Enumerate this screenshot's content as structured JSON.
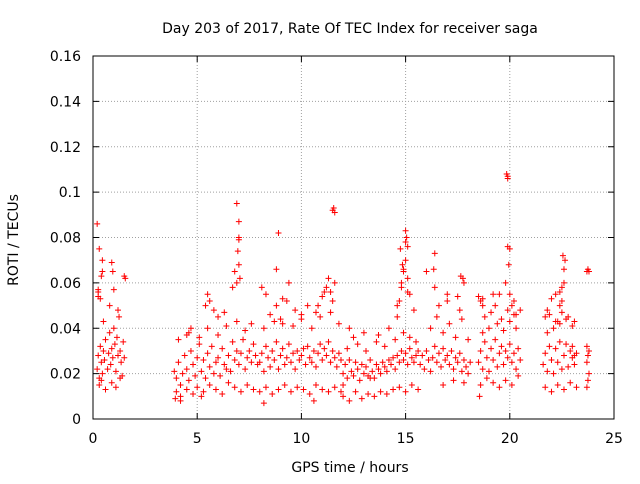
{
  "colors": {
    "marker": "#ff0000",
    "grid": "#a0a0a0",
    "axis": "#000000",
    "background": "#ffffff"
  },
  "chart_data": {
    "type": "scatter",
    "title": "Day 203 of 2017, Rate Of TEC Index for receiver saga",
    "xlabel": "GPS time / hours",
    "ylabel": "ROTI / TECUs",
    "xlim": [
      0,
      25
    ],
    "ylim": [
      0,
      0.16
    ],
    "xticks": [
      0,
      5,
      10,
      15,
      20,
      25
    ],
    "yticks": [
      0,
      0.02,
      0.04,
      0.06,
      0.08,
      0.1,
      0.12,
      0.14,
      0.16
    ],
    "xtick_labels": [
      "0",
      "5",
      "10",
      "15",
      "20",
      "25"
    ],
    "ytick_labels": [
      "0",
      "0.02",
      "0.04",
      "0.06",
      "0.08",
      "0.1",
      "0.12",
      "0.14",
      "0.16"
    ],
    "grid": true,
    "marker": "plus",
    "series": [
      {
        "name": "ROTI",
        "x": [
          0.2,
          0.25,
          0.3,
          0.35,
          0.4,
          0.45,
          0.5,
          0.55,
          0.6,
          0.7,
          0.75,
          0.8,
          0.85,
          0.9,
          0.95,
          1.0,
          1.05,
          1.1,
          1.15,
          1.2,
          1.25,
          1.3,
          1.35,
          1.4,
          1.45,
          1.5,
          0.3,
          0.4,
          0.6,
          0.9,
          1.1,
          1.3,
          0.5,
          0.8,
          1.2,
          0.25,
          0.35,
          1.0,
          0.45,
          0.45,
          0.4,
          0.25,
          0.25,
          0.3,
          0.2,
          0.9,
          0.95,
          1.5,
          1.55,
          3.9,
          4.0,
          4.1,
          4.2,
          4.3,
          4.4,
          4.5,
          4.6,
          4.7,
          4.8,
          4.9,
          5.0,
          5.1,
          5.2,
          5.3,
          5.4,
          5.5,
          5.6,
          5.7,
          5.8,
          5.9,
          6.0,
          6.1,
          6.2,
          6.3,
          6.4,
          6.5,
          6.6,
          6.7,
          6.8,
          6.9,
          7.0,
          7.1,
          7.2,
          7.3,
          7.4,
          7.5,
          7.6,
          7.7,
          7.8,
          7.9,
          4.0,
          4.2,
          4.5,
          4.8,
          5.0,
          5.3,
          5.6,
          5.9,
          6.2,
          6.5,
          6.8,
          7.1,
          7.4,
          7.7,
          4.1,
          4.6,
          5.1,
          5.5,
          6.0,
          6.4,
          6.9,
          7.3,
          7.6,
          5.4,
          5.5,
          5.6,
          5.8,
          6.0,
          6.3,
          4.5,
          4.7,
          6.7,
          6.8,
          6.9,
          7.0,
          7.0,
          7.0,
          6.9,
          6.95,
          7.0,
          7.05,
          4.2,
          5.2,
          3.95,
          8.0,
          8.1,
          8.2,
          8.3,
          8.4,
          8.5,
          8.6,
          8.7,
          8.8,
          8.9,
          9.0,
          9.1,
          9.2,
          9.3,
          9.4,
          9.5,
          9.6,
          9.7,
          9.8,
          9.9,
          10.0,
          10.1,
          10.2,
          10.3,
          10.4,
          10.5,
          10.6,
          10.7,
          10.8,
          10.9,
          11.0,
          11.1,
          11.2,
          11.3,
          11.4,
          11.5,
          11.6,
          11.7,
          11.8,
          11.9,
          8.0,
          8.3,
          8.6,
          8.9,
          9.2,
          9.5,
          9.8,
          10.1,
          10.4,
          10.7,
          11.0,
          11.3,
          11.6,
          11.9,
          8.2,
          8.7,
          9.1,
          9.6,
          10.0,
          10.5,
          10.9,
          11.4,
          11.8,
          8.5,
          8.8,
          9.0,
          9.3,
          9.7,
          10.0,
          10.3,
          10.7,
          11.0,
          11.2,
          11.3,
          11.4,
          11.5,
          11.6,
          8.3,
          8.1,
          9.1,
          9.4,
          10.8,
          11.1,
          8.9,
          8.8,
          11.5,
          11.55,
          11.6,
          8.2,
          10.6,
          12.0,
          12.1,
          12.2,
          12.3,
          12.4,
          12.5,
          12.6,
          12.7,
          12.8,
          12.9,
          13.0,
          13.1,
          13.2,
          13.3,
          13.4,
          13.5,
          13.6,
          13.7,
          13.8,
          13.9,
          14.0,
          14.1,
          14.2,
          14.3,
          14.4,
          14.5,
          14.6,
          14.7,
          14.8,
          14.9,
          15.0,
          15.1,
          15.2,
          15.3,
          15.4,
          15.5,
          15.6,
          12.0,
          12.3,
          12.6,
          12.9,
          13.2,
          13.5,
          13.8,
          14.1,
          14.4,
          14.7,
          15.0,
          15.3,
          15.6,
          12.2,
          12.7,
          13.1,
          13.6,
          14.0,
          14.5,
          14.9,
          15.2,
          15.5,
          12.3,
          12.5,
          13.0,
          13.7,
          14.2,
          14.6,
          14.7,
          14.8,
          14.9,
          15.0,
          15.1,
          15.2,
          15.4,
          14.75,
          14.85,
          15.0,
          15.05,
          15.1,
          15.0,
          14.8,
          14.9,
          15.1,
          14.6,
          12.0,
          13.3,
          15.7,
          15.8,
          15.9,
          16.0,
          16.1,
          16.2,
          16.3,
          16.4,
          16.5,
          16.6,
          16.7,
          16.8,
          16.9,
          17.0,
          17.1,
          17.2,
          17.3,
          17.4,
          17.5,
          17.6,
          17.7,
          17.8,
          17.9,
          18.0,
          18.1,
          16.2,
          16.5,
          16.8,
          17.1,
          17.4,
          17.7,
          18.0,
          16.6,
          17.0,
          17.6,
          16.8,
          17.3,
          17.8,
          16.4,
          17.0,
          17.5,
          17.8,
          16.35,
          16.4,
          17.65,
          17.75,
          16.0,
          18.5,
          18.6,
          18.7,
          18.8,
          18.9,
          19.0,
          19.1,
          19.2,
          19.3,
          19.4,
          19.5,
          19.6,
          19.7,
          19.8,
          19.9,
          20.0,
          20.1,
          20.2,
          20.3,
          20.4,
          20.5,
          18.6,
          18.9,
          19.2,
          19.5,
          19.8,
          20.1,
          20.4,
          18.7,
          19.0,
          19.4,
          19.7,
          20.0,
          20.3,
          18.8,
          19.1,
          19.6,
          19.9,
          20.2,
          18.6,
          18.7,
          19.2,
          19.3,
          19.5,
          19.8,
          20.0,
          20.1,
          20.2,
          20.3,
          19.9,
          20.0,
          19.9,
          19.85,
          19.9,
          19.95,
          18.5,
          18.7,
          20.5,
          18.55,
          21.6,
          21.7,
          21.8,
          21.9,
          22.0,
          22.1,
          22.2,
          22.3,
          22.4,
          22.5,
          22.6,
          22.7,
          22.8,
          22.9,
          23.0,
          23.1,
          23.2,
          21.7,
          22.0,
          22.3,
          22.6,
          22.9,
          23.2,
          21.8,
          22.1,
          22.4,
          22.7,
          23.0,
          21.9,
          22.2,
          22.5,
          22.8,
          23.1,
          21.8,
          22.0,
          22.2,
          22.4,
          22.5,
          22.6,
          22.6,
          22.55,
          22.65,
          22.4,
          22.5,
          21.7,
          22.3,
          23.0,
          23.1,
          23.7,
          23.75,
          23.8,
          23.7,
          23.75,
          23.8,
          23.7,
          23.8,
          23.75,
          23.7
        ],
        "y": [
          0.022,
          0.028,
          0.018,
          0.032,
          0.025,
          0.02,
          0.03,
          0.026,
          0.035,
          0.022,
          0.029,
          0.038,
          0.024,
          0.031,
          0.027,
          0.04,
          0.033,
          0.021,
          0.036,
          0.028,
          0.045,
          0.03,
          0.025,
          0.019,
          0.034,
          0.027,
          0.015,
          0.017,
          0.013,
          0.016,
          0.014,
          0.018,
          0.043,
          0.05,
          0.048,
          0.056,
          0.053,
          0.057,
          0.065,
          0.07,
          0.063,
          0.057,
          0.054,
          0.075,
          0.086,
          0.069,
          0.065,
          0.063,
          0.062,
          0.021,
          0.018,
          0.025,
          0.015,
          0.02,
          0.028,
          0.022,
          0.017,
          0.03,
          0.024,
          0.019,
          0.027,
          0.033,
          0.021,
          0.026,
          0.018,
          0.029,
          0.023,
          0.032,
          0.02,
          0.025,
          0.027,
          0.019,
          0.031,
          0.024,
          0.022,
          0.028,
          0.021,
          0.034,
          0.026,
          0.03,
          0.024,
          0.029,
          0.035,
          0.022,
          0.027,
          0.03,
          0.025,
          0.033,
          0.028,
          0.024,
          0.012,
          0.01,
          0.013,
          0.011,
          0.014,
          0.012,
          0.015,
          0.013,
          0.011,
          0.016,
          0.014,
          0.012,
          0.015,
          0.013,
          0.035,
          0.038,
          0.036,
          0.04,
          0.037,
          0.041,
          0.043,
          0.039,
          0.042,
          0.05,
          0.055,
          0.052,
          0.048,
          0.045,
          0.047,
          0.037,
          0.04,
          0.058,
          0.065,
          0.06,
          0.08,
          0.079,
          0.087,
          0.095,
          0.074,
          0.068,
          0.062,
          0.008,
          0.01,
          0.009,
          0.025,
          0.029,
          0.021,
          0.032,
          0.027,
          0.023,
          0.03,
          0.026,
          0.034,
          0.022,
          0.028,
          0.031,
          0.024,
          0.027,
          0.033,
          0.025,
          0.029,
          0.022,
          0.03,
          0.026,
          0.028,
          0.031,
          0.024,
          0.032,
          0.027,
          0.025,
          0.03,
          0.023,
          0.029,
          0.033,
          0.026,
          0.031,
          0.028,
          0.034,
          0.025,
          0.03,
          0.027,
          0.023,
          0.029,
          0.026,
          0.012,
          0.014,
          0.011,
          0.013,
          0.015,
          0.012,
          0.014,
          0.013,
          0.011,
          0.015,
          0.013,
          0.012,
          0.014,
          0.012,
          0.04,
          0.043,
          0.042,
          0.041,
          0.044,
          0.04,
          0.045,
          0.047,
          0.042,
          0.046,
          0.05,
          0.044,
          0.052,
          0.048,
          0.046,
          0.05,
          0.047,
          0.054,
          0.058,
          0.062,
          0.056,
          0.052,
          0.06,
          0.055,
          0.058,
          0.053,
          0.06,
          0.05,
          0.056,
          0.082,
          0.066,
          0.092,
          0.093,
          0.091,
          0.007,
          0.008,
          0.02,
          0.024,
          0.018,
          0.026,
          0.021,
          0.019,
          0.025,
          0.022,
          0.017,
          0.024,
          0.02,
          0.023,
          0.019,
          0.026,
          0.021,
          0.018,
          0.024,
          0.022,
          0.02,
          0.025,
          0.023,
          0.021,
          0.026,
          0.024,
          0.027,
          0.022,
          0.028,
          0.025,
          0.03,
          0.026,
          0.029,
          0.024,
          0.031,
          0.027,
          0.025,
          0.028,
          0.03,
          0.01,
          0.008,
          0.012,
          0.009,
          0.011,
          0.01,
          0.012,
          0.011,
          0.013,
          0.014,
          0.012,
          0.015,
          0.013,
          0.031,
          0.033,
          0.03,
          0.034,
          0.032,
          0.035,
          0.038,
          0.036,
          0.034,
          0.04,
          0.036,
          0.038,
          0.037,
          0.04,
          0.045,
          0.052,
          0.058,
          0.065,
          0.07,
          0.062,
          0.055,
          0.048,
          0.075,
          0.068,
          0.083,
          0.08,
          0.076,
          0.078,
          0.06,
          0.066,
          0.056,
          0.05,
          0.015,
          0.018,
          0.024,
          0.028,
          0.022,
          0.03,
          0.026,
          0.021,
          0.027,
          0.032,
          0.025,
          0.029,
          0.023,
          0.031,
          0.026,
          0.028,
          0.024,
          0.03,
          0.022,
          0.027,
          0.025,
          0.029,
          0.021,
          0.026,
          0.023,
          0.02,
          0.025,
          0.04,
          0.045,
          0.038,
          0.042,
          0.036,
          0.044,
          0.035,
          0.05,
          0.052,
          0.048,
          0.015,
          0.017,
          0.016,
          0.058,
          0.055,
          0.054,
          0.06,
          0.066,
          0.073,
          0.063,
          0.062,
          0.065,
          0.025,
          0.03,
          0.022,
          0.034,
          0.027,
          0.021,
          0.031,
          0.026,
          0.035,
          0.023,
          0.029,
          0.032,
          0.024,
          0.03,
          0.027,
          0.033,
          0.025,
          0.029,
          0.022,
          0.031,
          0.026,
          0.015,
          0.018,
          0.016,
          0.014,
          0.017,
          0.015,
          0.019,
          0.038,
          0.04,
          0.042,
          0.039,
          0.043,
          0.04,
          0.045,
          0.047,
          0.044,
          0.048,
          0.046,
          0.052,
          0.05,
          0.055,
          0.05,
          0.055,
          0.06,
          0.055,
          0.05,
          0.052,
          0.046,
          0.076,
          0.075,
          0.107,
          0.108,
          0.106,
          0.068,
          0.054,
          0.053,
          0.048,
          0.01,
          0.024,
          0.029,
          0.021,
          0.032,
          0.026,
          0.02,
          0.031,
          0.025,
          0.034,
          0.022,
          0.028,
          0.033,
          0.023,
          0.03,
          0.027,
          0.024,
          0.029,
          0.014,
          0.012,
          0.015,
          0.013,
          0.016,
          0.014,
          0.038,
          0.04,
          0.042,
          0.044,
          0.041,
          0.046,
          0.043,
          0.047,
          0.045,
          0.043,
          0.048,
          0.053,
          0.055,
          0.05,
          0.052,
          0.06,
          0.066,
          0.072,
          0.07,
          0.056,
          0.058,
          0.045,
          0.043,
          0.032,
          0.028,
          0.065,
          0.066,
          0.065,
          0.014,
          0.017,
          0.02,
          0.025,
          0.03,
          0.028,
          0.032
        ]
      }
    ]
  }
}
